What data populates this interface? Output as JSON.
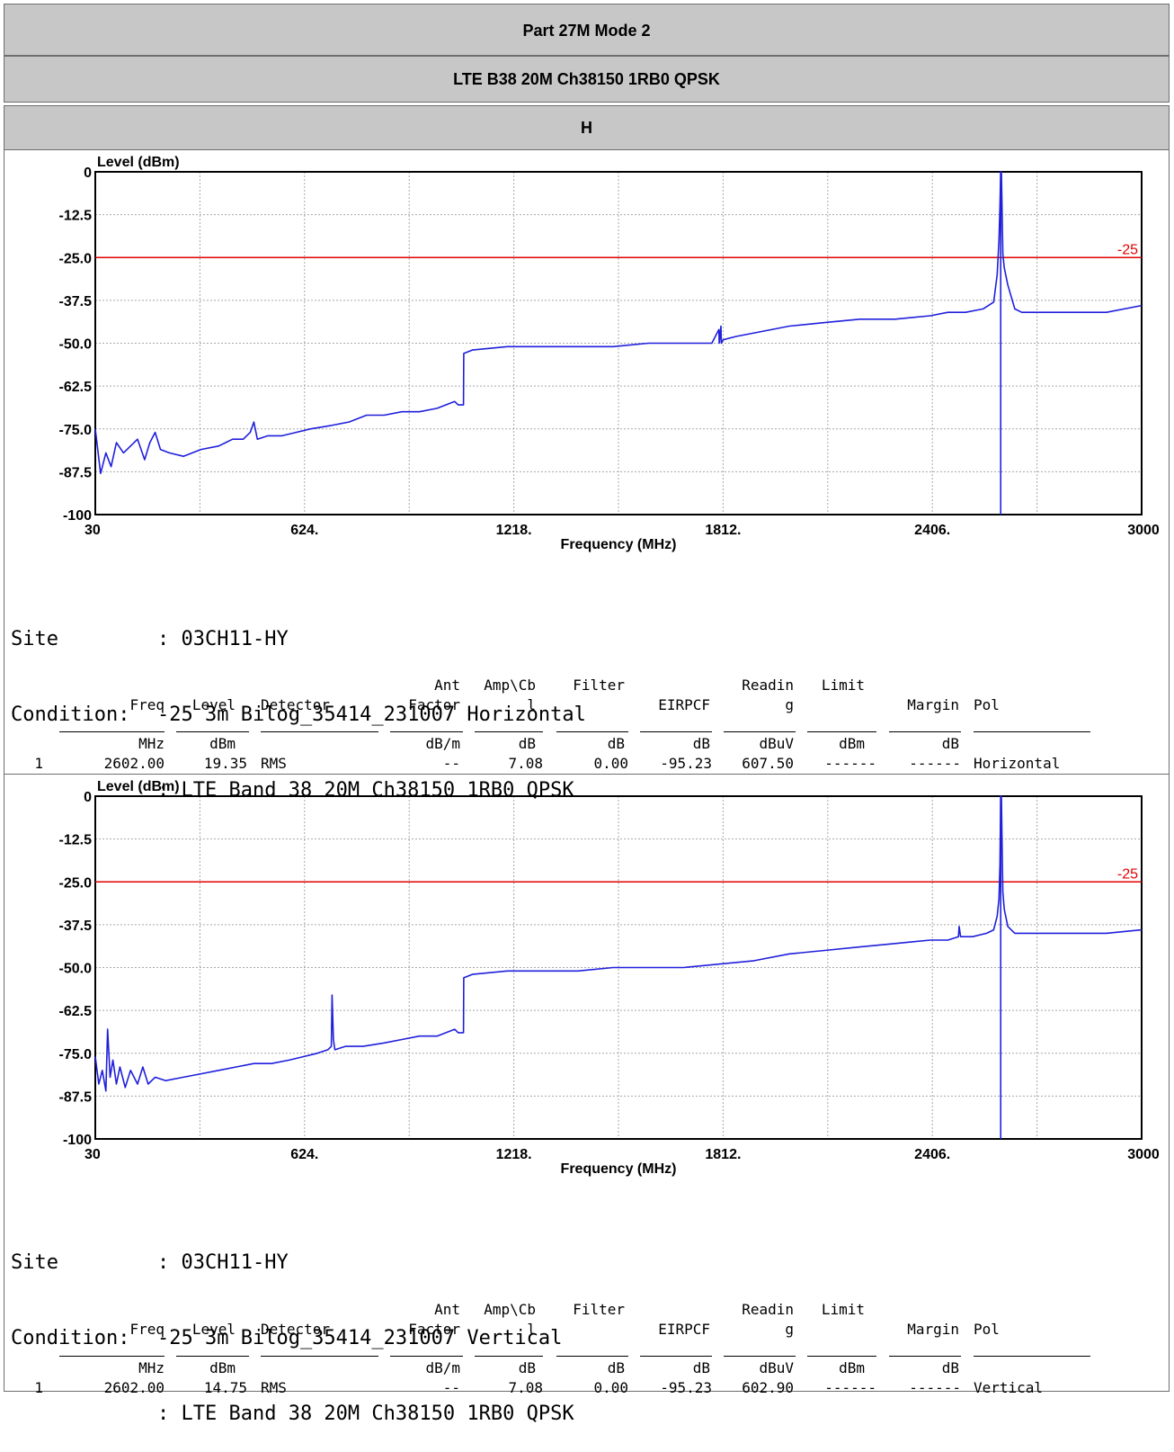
{
  "header": {
    "title": "Part 27M Mode 2",
    "subtitle": "LTE B38 20M Ch38150 1RB0 QPSK",
    "polarization": "H"
  },
  "chart_data": [
    {
      "type": "line",
      "title": "",
      "xlabel": "Frequency (MHz)",
      "ylabel": "Level (dBm)",
      "xlim": [
        30,
        3000
      ],
      "ylim": [
        -100,
        0
      ],
      "x_ticks": [
        "30",
        "624.",
        "1218.",
        "1812.",
        "2406.",
        "3000"
      ],
      "y_ticks": [
        "0",
        "-12.5",
        "-25.0",
        "-37.5",
        "-50.0",
        "-62.5",
        "-75.0",
        "-87.5",
        "-100"
      ],
      "limit_line": {
        "value": -25,
        "label": "-25",
        "color": "#e00000"
      },
      "series": [
        {
          "color": "#1f1fdc",
          "x": [
            30,
            45,
            60,
            75,
            90,
            110,
            130,
            150,
            170,
            185,
            200,
            215,
            240,
            280,
            330,
            380,
            420,
            450,
            470,
            480,
            490,
            520,
            560,
            600,
            640,
            700,
            750,
            800,
            850,
            900,
            950,
            1000,
            1050,
            1060,
            1075,
            1076,
            1100,
            1200,
            1300,
            1400,
            1500,
            1600,
            1700,
            1780,
            1800,
            1801,
            1806,
            1807,
            1812,
            1850,
            1900,
            2000,
            2100,
            2200,
            2300,
            2400,
            2450,
            2500,
            2550,
            2580,
            2590,
            2595,
            2598,
            2600,
            2602,
            2604,
            2606,
            2610,
            2620,
            2640,
            2660,
            2700,
            2800,
            2900,
            3000
          ],
          "y": [
            -75,
            -88,
            -82,
            -86,
            -79,
            -82,
            -80,
            -78,
            -84,
            -79,
            -76,
            -81,
            -82,
            -83,
            -81,
            -80,
            -78,
            -78,
            -76,
            -73,
            -78,
            -77,
            -77,
            -76,
            -75,
            -74,
            -73,
            -71,
            -71,
            -70,
            -70,
            -69,
            -67,
            -68,
            -68,
            -53,
            -52,
            -51,
            -51,
            -51,
            -51,
            -50,
            -50,
            -50,
            -46,
            -50,
            -45,
            -50,
            -49,
            -48,
            -47,
            -45,
            -44,
            -43,
            -43,
            -42,
            -41,
            -41,
            -40,
            -38,
            -30,
            -20,
            -10,
            0,
            0,
            -12,
            -24,
            -28,
            -33,
            -40,
            -41,
            -41,
            -41,
            -41,
            -39
          ]
        }
      ]
    },
    {
      "type": "line",
      "title": "",
      "xlabel": "Frequency (MHz)",
      "ylabel": "Level (dBm)",
      "xlim": [
        30,
        3000
      ],
      "ylim": [
        -100,
        0
      ],
      "x_ticks": [
        "30",
        "624.",
        "1218.",
        "1812.",
        "2406.",
        "3000"
      ],
      "y_ticks": [
        "0",
        "-12.5",
        "-25.0",
        "-37.5",
        "-50.0",
        "-62.5",
        "-75.0",
        "-87.5",
        "-100"
      ],
      "limit_line": {
        "value": -25,
        "label": "-25",
        "color": "#e00000"
      },
      "series": [
        {
          "color": "#1f1fdc",
          "x": [
            30,
            40,
            50,
            60,
            65,
            72,
            80,
            90,
            100,
            115,
            130,
            150,
            165,
            180,
            200,
            230,
            280,
            330,
            380,
            430,
            480,
            530,
            580,
            620,
            660,
            690,
            700,
            702,
            706,
            710,
            740,
            790,
            850,
            900,
            950,
            1000,
            1050,
            1060,
            1075,
            1076,
            1100,
            1200,
            1300,
            1400,
            1500,
            1600,
            1700,
            1800,
            1900,
            2000,
            2100,
            2200,
            2300,
            2400,
            2450,
            2480,
            2482,
            2486,
            2490,
            2520,
            2560,
            2580,
            2590,
            2595,
            2598,
            2600,
            2602,
            2604,
            2606,
            2610,
            2620,
            2640,
            2660,
            2700,
            2800,
            2900,
            3000
          ],
          "y": [
            -76,
            -84,
            -80,
            -86,
            -68,
            -82,
            -77,
            -84,
            -79,
            -85,
            -80,
            -84,
            -79,
            -84,
            -82,
            -83,
            -82,
            -81,
            -80,
            -79,
            -78,
            -78,
            -77,
            -76,
            -75,
            -74,
            -73,
            -58,
            -71,
            -74,
            -73,
            -73,
            -72,
            -71,
            -70,
            -70,
            -68,
            -69,
            -69,
            -53,
            -52,
            -51,
            -51,
            -51,
            -50,
            -50,
            -50,
            -49,
            -48,
            -46,
            -45,
            -44,
            -43,
            -42,
            -42,
            -41,
            -38,
            -41,
            -41,
            -41,
            -40,
            -39,
            -35,
            -30,
            -20,
            0,
            0,
            -15,
            -28,
            -33,
            -38,
            -40,
            -40,
            -40,
            -40,
            -40,
            -39
          ]
        }
      ]
    }
  ],
  "measurements": [
    {
      "site_label": "Site",
      "site_value": ": 03CH11-HY",
      "condition_label": "Condition:",
      "condition_value": "-25 3m Bilog_35414_231007 Horizontal",
      "condition_line2": ": LTE Band 38 20M Ch38150 1RB0 QPSK",
      "table": {
        "header_top": [
          "",
          "",
          "",
          "Ant",
          "Amp\\Cb",
          "Filter",
          "",
          "Readin",
          "Limit",
          "",
          ""
        ],
        "header_bottom": [
          "Freq",
          "Level",
          "Detector",
          "Factor",
          "l",
          "",
          "EIRPCF",
          "g",
          "",
          "Margin",
          "Pol"
        ],
        "units": [
          "MHz",
          "dBm",
          "",
          "dB/m",
          "dB",
          "dB",
          "dB",
          "dBuV",
          "dBm",
          "dB",
          ""
        ],
        "row": [
          "1",
          "2602.00",
          "19.35",
          "RMS",
          "--",
          "7.08",
          "0.00",
          "-95.23",
          "607.50",
          "------",
          "------",
          "Horizontal"
        ]
      }
    },
    {
      "site_label": "Site",
      "site_value": ": 03CH11-HY",
      "condition_label": "Condition:",
      "condition_value": "-25 3m Bilog_35414_231007 Vertical",
      "condition_line2": ": LTE Band 38 20M Ch38150 1RB0 QPSK",
      "table": {
        "header_top": [
          "",
          "",
          "",
          "Ant",
          "Amp\\Cb",
          "Filter",
          "",
          "Readin",
          "Limit",
          "",
          ""
        ],
        "header_bottom": [
          "Freq",
          "Level",
          "Detector",
          "Factor",
          "l",
          "",
          "EIRPCF",
          "g",
          "",
          "Margin",
          "Pol"
        ],
        "units": [
          "MHz",
          "dBm",
          "",
          "dB/m",
          "dB",
          "dB",
          "dB",
          "dBuV",
          "dBm",
          "dB",
          ""
        ],
        "row": [
          "1",
          "2602.00",
          "14.75",
          "RMS",
          "--",
          "7.08",
          "0.00",
          "-95.23",
          "602.90",
          "------",
          "------",
          "Vertical"
        ]
      }
    }
  ]
}
